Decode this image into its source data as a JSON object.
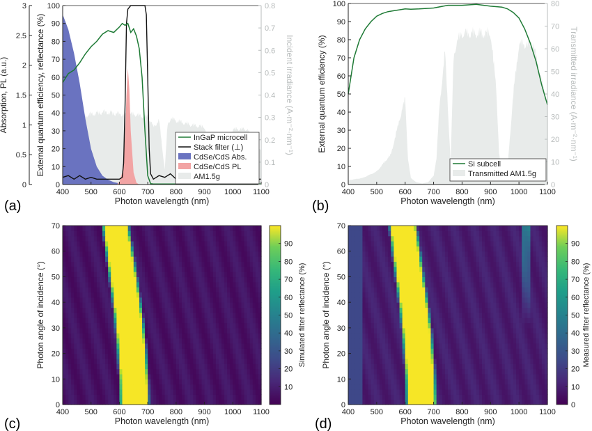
{
  "figure": {
    "panel_labels": [
      "(a)",
      "(b)",
      "(c)",
      "(d)"
    ]
  },
  "colors": {
    "ingap": "#1e7a35",
    "filter": "#111111",
    "abs_fill": "#6a73c0",
    "pl_fill": "#f2a4a4",
    "am15": "#e8ebea",
    "si": "#1e7a35",
    "axis": "#222222",
    "axis_right": "#b8bcbc"
  },
  "chart_data": [
    {
      "panel": "(a)",
      "type": "line",
      "xlabel": "Photon wavelength (nm)",
      "ylabel": "External quantum efficiency, reflectance (%)",
      "ylabel_left2": "Absorption, PL (a.u.)",
      "ylabel_right": "Incident irradiance (A·m⁻²·nm⁻¹)",
      "xlim": [
        400,
        1100
      ],
      "ylim": [
        0,
        100
      ],
      "y2lim": [
        0,
        3
      ],
      "y3lim": [
        0,
        0.8
      ],
      "xticks": [
        400,
        500,
        600,
        700,
        800,
        900,
        1000,
        1100
      ],
      "yticks": [
        0,
        10,
        20,
        30,
        40,
        50,
        60,
        70,
        80,
        90,
        100
      ],
      "y2ticks": [
        "0",
        "0.5",
        "1",
        "1.5",
        "2",
        "2.5",
        "3"
      ],
      "y3ticks": [
        "0",
        "0.1",
        "0.2",
        "0.3",
        "0.4",
        "0.5",
        "0.6",
        "0.7",
        "0.8"
      ],
      "legend": {
        "position": "bottom-right",
        "entries": [
          "InGaP microcell",
          "Stack filter (⊥)",
          "CdSe/CdS Abs.",
          "CdSe/CdS PL",
          "AM1.5g"
        ]
      },
      "series": [
        {
          "name": "InGaP microcell",
          "axis": "left",
          "x": [
            400,
            420,
            440,
            460,
            480,
            500,
            520,
            540,
            560,
            580,
            600,
            610,
            620,
            630,
            640,
            650,
            660,
            670,
            680,
            690,
            700,
            710,
            720,
            750,
            800,
            900,
            1000,
            1100
          ],
          "y": [
            57,
            62,
            64,
            68,
            73,
            77,
            80,
            84,
            86,
            85,
            88,
            90,
            89,
            90,
            85,
            87,
            83,
            76,
            60,
            30,
            5,
            0.5,
            0.3,
            0.3,
            0.3,
            0.3,
            0.3,
            0.3
          ]
        },
        {
          "name": "Stack filter (⊥)",
          "axis": "left",
          "x": [
            400,
            420,
            440,
            460,
            480,
            500,
            520,
            540,
            560,
            580,
            600,
            610,
            615,
            620,
            625,
            630,
            640,
            660,
            680,
            690,
            695,
            700,
            705,
            710,
            720,
            740,
            760,
            780,
            800,
            820,
            840,
            860,
            880,
            900,
            950,
            1000,
            1050,
            1100
          ],
          "y": [
            4,
            5,
            3,
            5,
            3,
            4,
            3,
            3,
            3,
            3,
            3,
            4,
            12,
            45,
            90,
            98,
            100,
            100,
            100,
            100,
            95,
            60,
            20,
            6,
            3,
            5,
            4,
            6,
            3,
            4,
            3,
            4,
            3,
            3,
            3,
            3,
            3,
            3
          ]
        },
        {
          "name": "CdSe/CdS Abs.",
          "axis": "left2",
          "x": [
            400,
            420,
            440,
            460,
            480,
            500,
            520,
            540,
            560,
            580,
            600,
            620
          ],
          "y": [
            2.85,
            2.6,
            2.2,
            1.7,
            1.1,
            0.6,
            0.3,
            0.15,
            0.08,
            0.04,
            0.02,
            0
          ]
        },
        {
          "name": "CdSe/CdS PL",
          "axis": "left2",
          "x": [
            590,
            600,
            610,
            620,
            625,
            630,
            635,
            640,
            650,
            660,
            670
          ],
          "y": [
            0,
            0.04,
            0.2,
            0.8,
            1.5,
            1.95,
            1.6,
            0.9,
            0.2,
            0.03,
            0
          ]
        },
        {
          "name": "AM1.5g",
          "axis": "right",
          "kind": "spectrum",
          "x": [
            400,
            450,
            500,
            550,
            600,
            650,
            680,
            700,
            720,
            740,
            760,
            770,
            780,
            800,
            850,
            900,
            920,
            930,
            940,
            960,
            980,
            1000,
            1050,
            1080,
            1100
          ],
          "y": [
            0.26,
            0.31,
            0.33,
            0.34,
            0.33,
            0.33,
            0.32,
            0.32,
            0.27,
            0.3,
            0.07,
            0.28,
            0.31,
            0.3,
            0.28,
            0.27,
            0.18,
            0.08,
            0.02,
            0.05,
            0.18,
            0.26,
            0.26,
            0.2,
            0.16
          ]
        }
      ]
    },
    {
      "panel": "(b)",
      "type": "line",
      "xlabel": "Photon wavelength (nm)",
      "ylabel": "External quantum efficiency (%)",
      "ylabel_right": "Transmitted irradiance (A·m⁻²·nm⁻¹)",
      "xlim": [
        400,
        1100
      ],
      "ylim": [
        0,
        100
      ],
      "y3lim": [
        0,
        80
      ],
      "xticks": [
        400,
        500,
        600,
        700,
        800,
        900,
        1000,
        1100
      ],
      "yticks": [
        0,
        10,
        20,
        30,
        40,
        50,
        60,
        70,
        80,
        90,
        100
      ],
      "y3ticks": [
        "0",
        "10",
        "20",
        "30",
        "40",
        "50",
        "60",
        "70",
        "80"
      ],
      "legend": {
        "position": "bottom-right",
        "entries": [
          "Si subcell",
          "Transmitted AM1.5g"
        ]
      },
      "series": [
        {
          "name": "Si subcell",
          "axis": "left",
          "x": [
            400,
            420,
            440,
            460,
            480,
            500,
            520,
            540,
            560,
            580,
            600,
            620,
            650,
            700,
            750,
            800,
            850,
            900,
            940,
            960,
            980,
            1000,
            1020,
            1040,
            1060,
            1080,
            1100
          ],
          "y": [
            50,
            70,
            80,
            86,
            90,
            93,
            94.5,
            95.5,
            96,
            96.5,
            97,
            96.8,
            97,
            97.5,
            99,
            99,
            99.5,
            98.5,
            98,
            97,
            95,
            92,
            86,
            78,
            68,
            55,
            44
          ]
        },
        {
          "name": "Transmitted AM1.5g",
          "axis": "right",
          "kind": "spectrum",
          "x": [
            400,
            450,
            500,
            550,
            580,
            600,
            610,
            620,
            640,
            660,
            680,
            700,
            710,
            720,
            740,
            760,
            770,
            780,
            800,
            850,
            900,
            920,
            930,
            940,
            960,
            980,
            1000,
            1050,
            1080,
            1100
          ],
          "y": [
            2,
            3,
            6,
            14,
            30,
            40,
            12,
            3,
            1,
            0.5,
            1,
            4,
            12,
            35,
            62,
            10,
            58,
            66,
            70,
            70,
            70,
            45,
            15,
            2,
            8,
            42,
            65,
            65,
            48,
            36
          ]
        }
      ]
    },
    {
      "panel": "(c)",
      "type": "heatmap",
      "xlabel": "Photon wavelength (nm)",
      "ylabel": "Photon angle of incidence (°)",
      "colorbar_label": "Simulated filter reflectance (%)",
      "xlim": [
        400,
        1100
      ],
      "ylim": [
        0,
        70
      ],
      "zlim": [
        0,
        100
      ],
      "xticks": [
        400,
        500,
        600,
        700,
        800,
        900,
        1000,
        1100
      ],
      "yticks": [
        0,
        10,
        20,
        30,
        40,
        50,
        60,
        70
      ],
      "cbticks": [
        10,
        20,
        30,
        40,
        50,
        60,
        70,
        80,
        90
      ],
      "band": {
        "angles": [
          0,
          10,
          20,
          30,
          40,
          50,
          60,
          70
        ],
        "lower_edge_nm": [
          610,
          608,
          602,
          594,
          584,
          572,
          560,
          548
        ],
        "upper_edge_nm": [
          697,
          694,
          688,
          680,
          668,
          655,
          640,
          625
        ],
        "peak": 99,
        "background": 5
      }
    },
    {
      "panel": "(d)",
      "type": "heatmap",
      "xlabel": "Photon wavelength (nm)",
      "ylabel": "Photon angle of incidence (°)",
      "colorbar_label": "Measured filter reflectance (%)",
      "xlim": [
        400,
        1100
      ],
      "ylim": [
        0,
        70
      ],
      "zlim": [
        0,
        100
      ],
      "xticks": [
        400,
        500,
        600,
        700,
        800,
        900,
        1000,
        1100
      ],
      "yticks": [
        0,
        10,
        20,
        30,
        40,
        50,
        60,
        70
      ],
      "cbticks": [
        0,
        10,
        20,
        30,
        40,
        50,
        60,
        70,
        80,
        90
      ],
      "band": {
        "angles": [
          0,
          10,
          20,
          30,
          40,
          50,
          60,
          70
        ],
        "lower_edge_nm": [
          612,
          610,
          604,
          596,
          586,
          574,
          562,
          552
        ],
        "upper_edge_nm": [
          702,
          698,
          692,
          684,
          672,
          658,
          645,
          632
        ],
        "peak": 99,
        "background": 8,
        "secondary": {
          "nm": 1025,
          "peak_at_70deg": 35
        },
        "edge_strip": {
          "nm": [
            400,
            445
          ],
          "value": 22
        }
      }
    }
  ]
}
